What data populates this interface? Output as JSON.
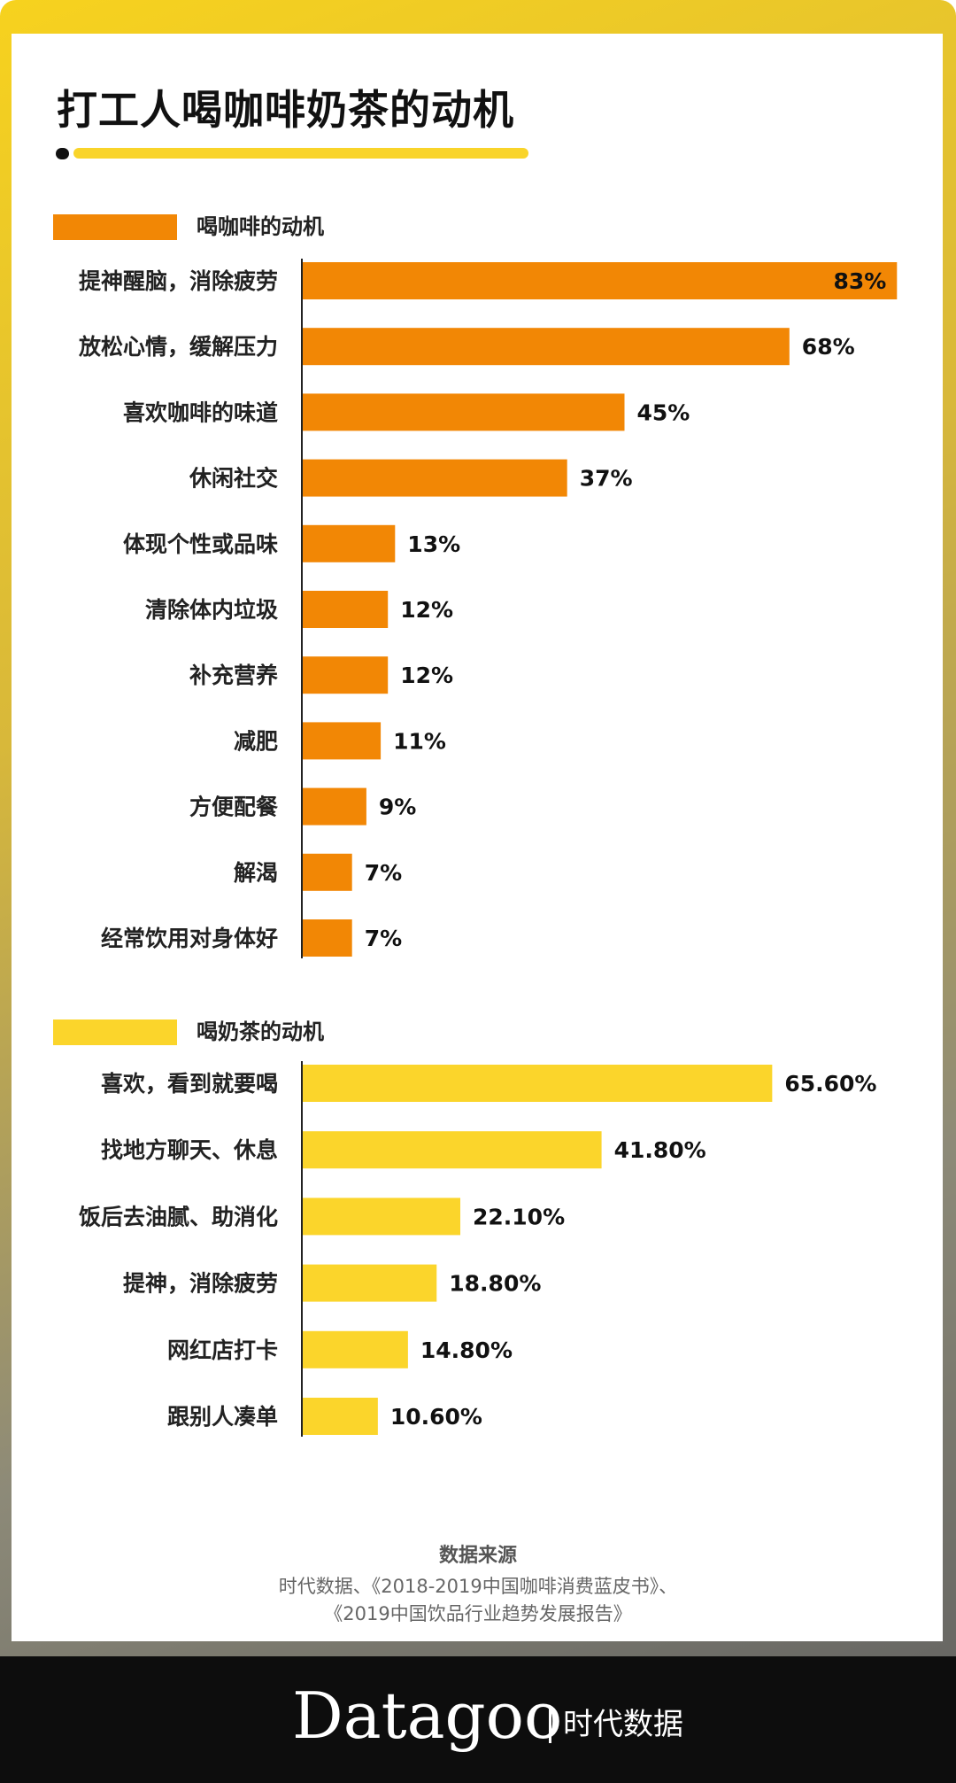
{
  "title": "打工人喝咖啡奶茶的动机",
  "colors": {
    "coffee": "#f28705",
    "tea": "#fbd52b",
    "axis": "#222222"
  },
  "chart_data": [
    {
      "type": "bar",
      "orientation": "horizontal",
      "legend": "喝咖啡的动机",
      "categories": [
        "提神醒脑，消除疲劳",
        "放松心情，缓解压力",
        "喜欢咖啡的味道",
        "休闲社交",
        "体现个性或品味",
        "清除体内垃圾",
        "补充营养",
        "减肥",
        "方便配餐",
        "解渴",
        "经常饮用对身体好"
      ],
      "values": [
        83,
        68,
        45,
        37,
        13,
        12,
        12,
        11,
        9,
        7,
        7
      ],
      "labels": [
        "83%",
        "68%",
        "45%",
        "37%",
        "13%",
        "12%",
        "12%",
        "11%",
        "9%",
        "7%",
        "7%"
      ],
      "unit": "%"
    },
    {
      "type": "bar",
      "orientation": "horizontal",
      "legend": "喝奶茶的动机",
      "categories": [
        "喜欢，看到就要喝",
        "找地方聊天、休息",
        "饭后去油腻、助消化",
        "提神，消除疲劳",
        "网红店打卡",
        "跟别人凑单"
      ],
      "values": [
        65.6,
        41.8,
        22.1,
        18.8,
        14.8,
        10.6
      ],
      "labels": [
        "65.60%",
        "41.80%",
        "22.10%",
        "18.80%",
        "14.80%",
        "10.60%"
      ],
      "unit": "%"
    }
  ],
  "source": {
    "heading": "数据来源",
    "line1": "时代数据、《2018-2019中国咖啡消费蓝皮书》、",
    "line2": "《2019中国饮品行业趋势发展报告》"
  },
  "footer": {
    "brand": "Datagoo",
    "brand_cn": "时代数据"
  }
}
